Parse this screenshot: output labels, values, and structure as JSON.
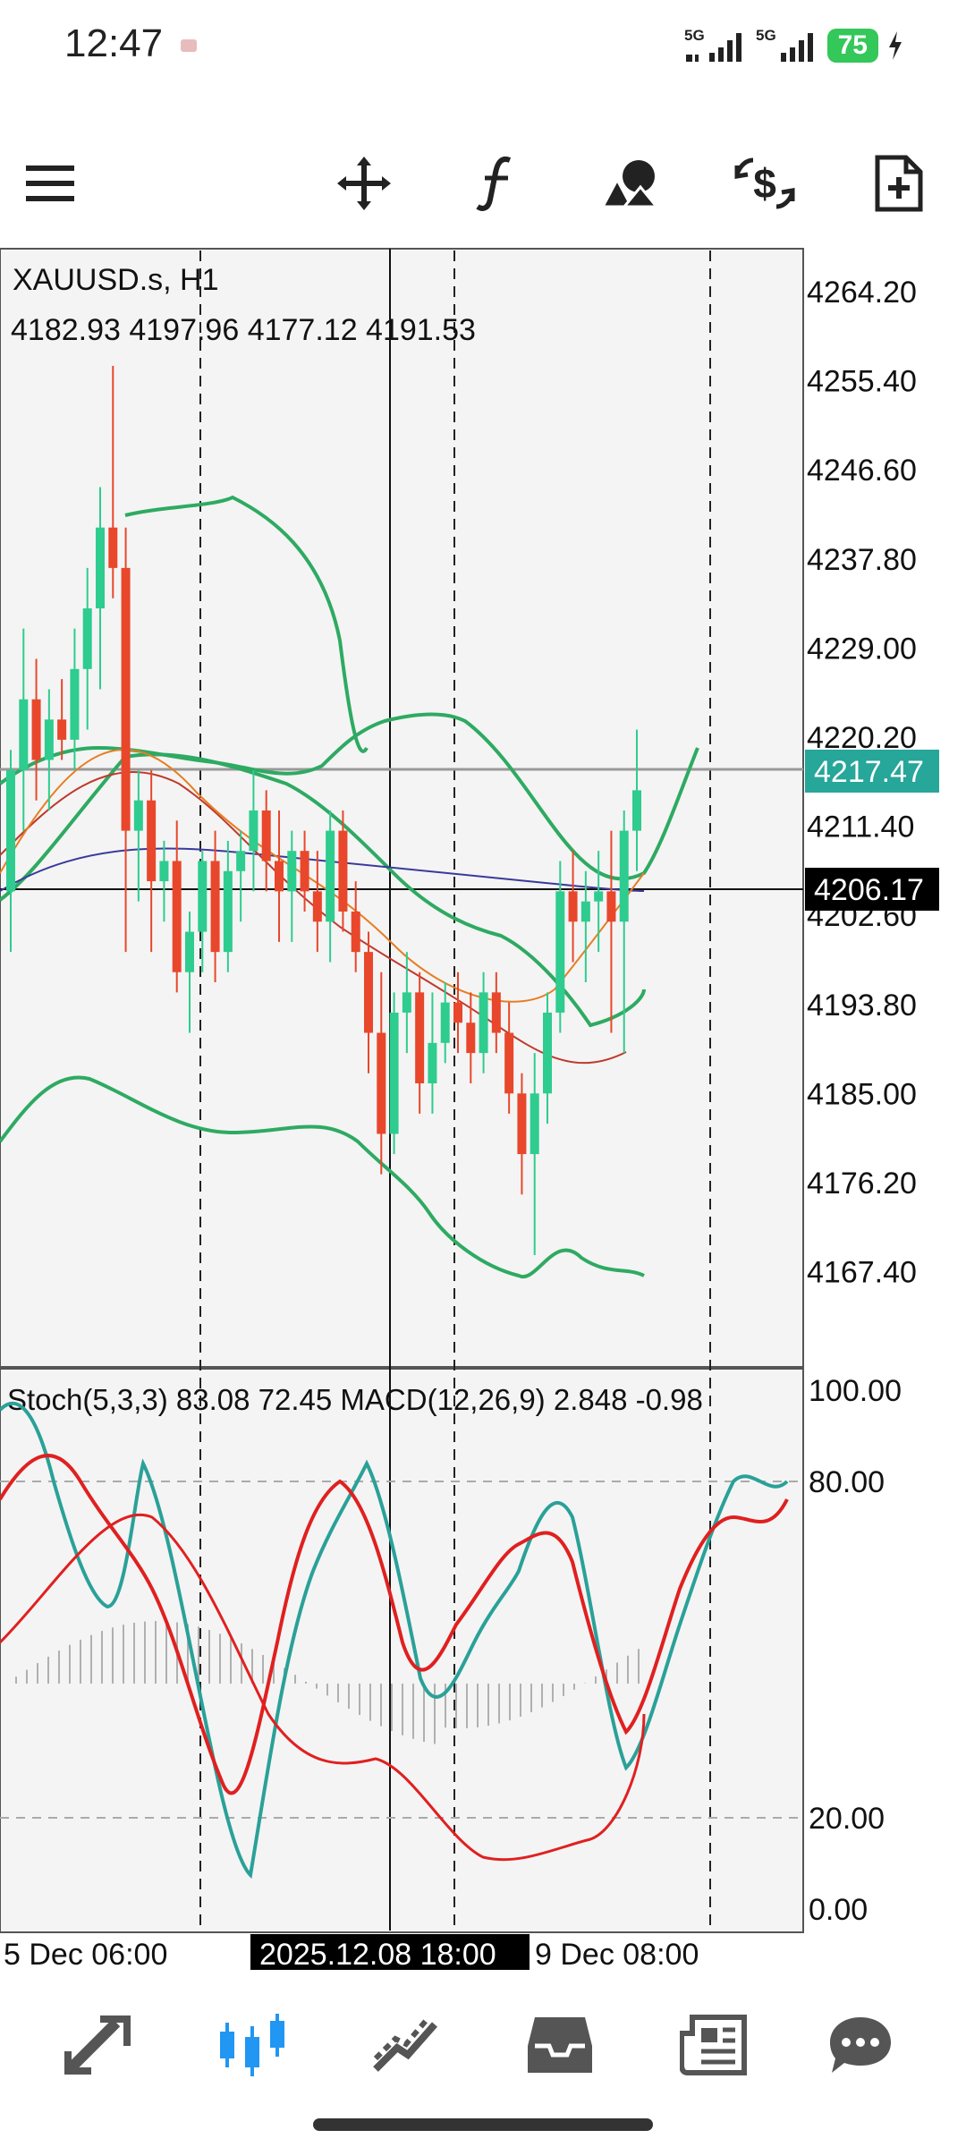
{
  "status": {
    "time": "12:47",
    "network1": "5G",
    "network2": "5G",
    "battery": "75"
  },
  "toolbar": {
    "icons": [
      "menu-icon",
      "crosshair-move-icon",
      "function-icon",
      "objects-icon",
      "trade-icon",
      "add-document-icon"
    ]
  },
  "chart": {
    "symbol": "XAUUSD.s, H1",
    "ohlc": "4182.93 4197.96 4177.12 4191.53",
    "price_axis": [
      "4264.20",
      "4255.40",
      "4246.60",
      "4237.80",
      "4229.00",
      "4220.20",
      "4211.40",
      "4202.60",
      "4193.80",
      "4185.00",
      "4176.20",
      "4167.40"
    ],
    "bid_label": "4217.47",
    "crosshair_label": "4206.17",
    "indicator_label": "Stoch(5,3,3) 83.08 72.45 MACD(12,26,9) 2.848 -0.98",
    "osc_axis": [
      "100.00",
      "80.00",
      "20.00",
      "0.00"
    ],
    "time_left": "5 Dec 06:00",
    "time_crosshair": "2025.12.08 18:00",
    "time_right": "9 Dec 08:00",
    "colors": {
      "bull": "#2ecc8f",
      "bear": "#e8472b",
      "bid": "#27a69a",
      "band": "#2eaa62"
    }
  },
  "chart_data": {
    "type": "candlestick",
    "ylim": [
      4160.0,
      4268.0
    ],
    "candles": [
      [
        4206,
        4220,
        4200,
        4218
      ],
      [
        4218,
        4232,
        4212,
        4225
      ],
      [
        4225,
        4229,
        4215,
        4219
      ],
      [
        4219,
        4226,
        4214,
        4223
      ],
      [
        4223,
        4227,
        4219,
        4221
      ],
      [
        4221,
        4232,
        4218,
        4228
      ],
      [
        4228,
        4238,
        4222,
        4234
      ],
      [
        4234,
        4246,
        4226,
        4242
      ],
      [
        4242,
        4258,
        4235,
        4238
      ],
      [
        4238,
        4242,
        4200,
        4212
      ],
      [
        4212,
        4218,
        4205,
        4215
      ],
      [
        4215,
        4218,
        4200,
        4207
      ],
      [
        4207,
        4211,
        4203,
        4209
      ],
      [
        4209,
        4213,
        4196,
        4198
      ],
      [
        4198,
        4204,
        4192,
        4202
      ],
      [
        4202,
        4210,
        4198,
        4209
      ],
      [
        4209,
        4212,
        4197,
        4200
      ],
      [
        4200,
        4211,
        4198,
        4208
      ],
      [
        4208,
        4212,
        4203,
        4210
      ],
      [
        4210,
        4218,
        4206,
        4214
      ],
      [
        4214,
        4216,
        4206,
        4209
      ],
      [
        4209,
        4214,
        4201,
        4206
      ],
      [
        4206,
        4212,
        4201,
        4210
      ],
      [
        4210,
        4212,
        4204,
        4206
      ],
      [
        4206,
        4210,
        4200,
        4203
      ],
      [
        4203,
        4214,
        4199,
        4212
      ],
      [
        4212,
        4214,
        4202,
        4204
      ],
      [
        4204,
        4207,
        4198,
        4200
      ],
      [
        4200,
        4202,
        4188,
        4192
      ],
      [
        4192,
        4198,
        4178,
        4182
      ],
      [
        4182,
        4196,
        4180,
        4194
      ],
      [
        4194,
        4200,
        4190,
        4196
      ],
      [
        4196,
        4198,
        4184,
        4187
      ],
      [
        4187,
        4196,
        4184,
        4191
      ],
      [
        4191,
        4197,
        4189,
        4195
      ],
      [
        4195,
        4198,
        4190,
        4193
      ],
      [
        4193,
        4196,
        4187,
        4190
      ],
      [
        4190,
        4198,
        4188,
        4196
      ],
      [
        4196,
        4198,
        4190,
        4192
      ],
      [
        4192,
        4195,
        4184,
        4186
      ],
      [
        4186,
        4188,
        4176,
        4180
      ],
      [
        4180,
        4190,
        4170,
        4186
      ],
      [
        4186,
        4196,
        4183,
        4194
      ],
      [
        4194,
        4209,
        4192,
        4206
      ],
      [
        4206,
        4210,
        4199,
        4203
      ],
      [
        4203,
        4208,
        4197,
        4205
      ],
      [
        4205,
        4210,
        4200,
        4206
      ],
      [
        4206,
        4212,
        4192,
        4203
      ],
      [
        4203,
        4214,
        4190,
        4212
      ],
      [
        4212,
        4222,
        4208,
        4216
      ]
    ]
  }
}
